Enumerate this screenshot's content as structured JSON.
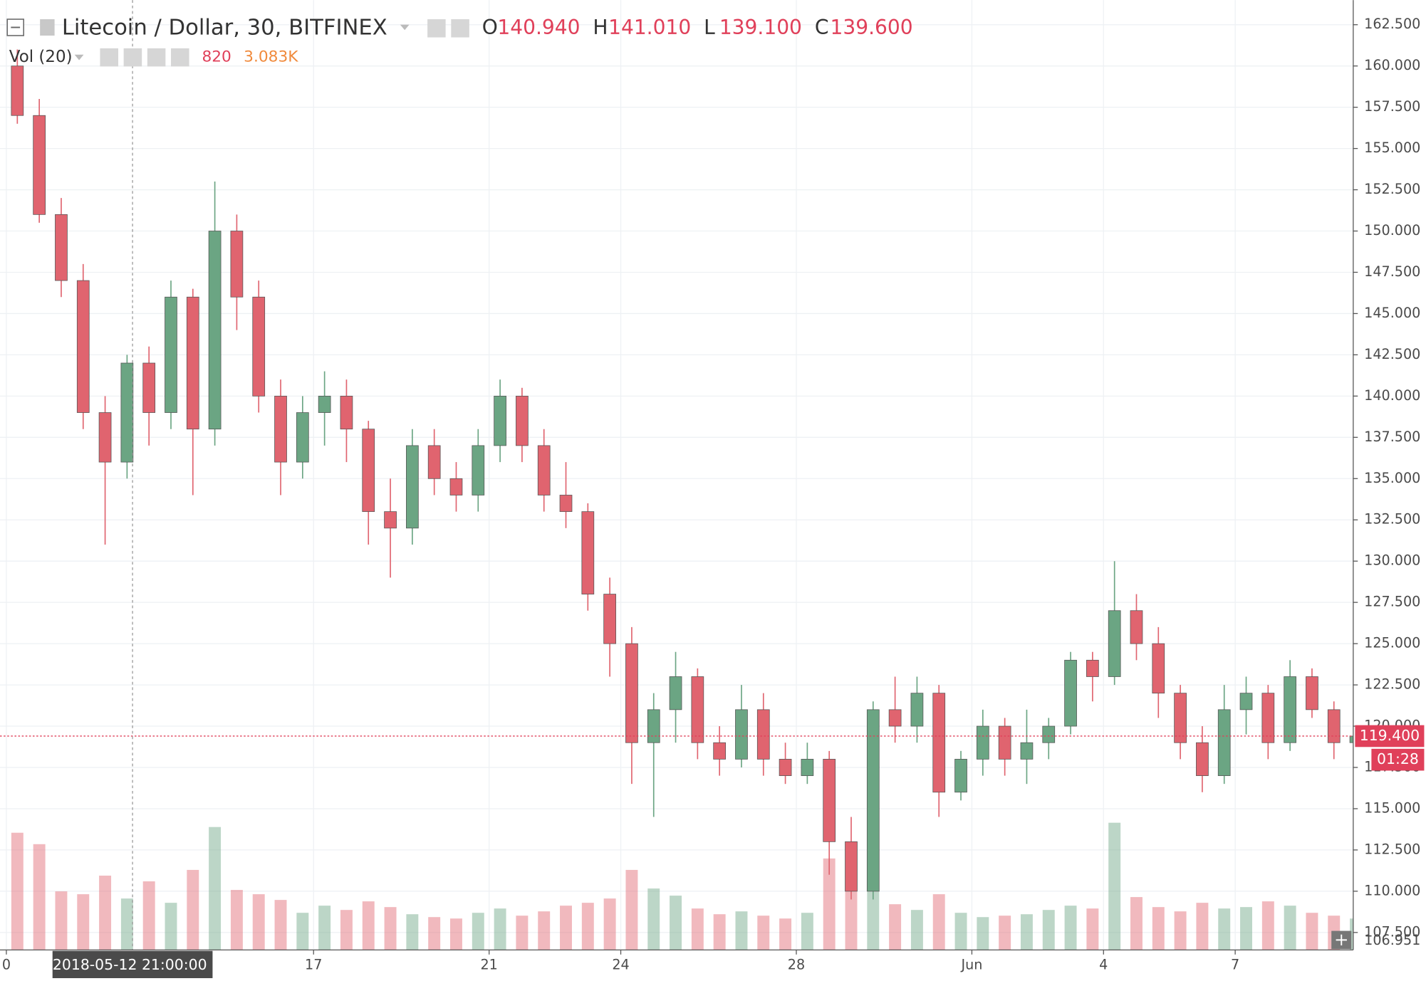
{
  "chart_data": {
    "type": "candlestick",
    "title": "Litecoin / Dollar, 30, BITFINEX",
    "ohlc_legend": [
      {
        "label": "O",
        "value": "140.940"
      },
      {
        "label": "H",
        "value": "141.010"
      },
      {
        "label": "L",
        "value": "139.100"
      },
      {
        "label": "C",
        "value": "139.600"
      }
    ],
    "volume_legend": {
      "label": "Vol (20)",
      "values": [
        "820",
        "3.083K"
      ]
    },
    "up_color": "#6ba583",
    "down_color": "#e0646f",
    "x": [
      10,
      10.5,
      11,
      11.5,
      12,
      12.5,
      13,
      13.5,
      14,
      14.5,
      15,
      15.5,
      16,
      16.5,
      17,
      17.5,
      18,
      18.5,
      19,
      19.5,
      20,
      20.5,
      21,
      21.5,
      22,
      22.5,
      23,
      23.5,
      24,
      24.5,
      25,
      25.5,
      26,
      26.5,
      27,
      27.5,
      28,
      28.5,
      29,
      29.5,
      30,
      30.5,
      31,
      31.5,
      32,
      32.5,
      33,
      33.5,
      34,
      34.5,
      35,
      35.5,
      36,
      36.5,
      37,
      37.5,
      38,
      38.5,
      39,
      39.5,
      40,
      40.5
    ],
    "open": [
      160,
      157,
      151,
      147,
      139,
      136,
      142,
      139,
      146,
      138,
      150,
      146,
      140,
      136,
      139,
      140,
      138,
      133,
      132,
      137,
      135,
      134,
      137,
      140,
      137,
      134,
      133,
      128,
      125,
      119,
      121,
      123,
      119,
      118,
      121,
      118,
      117,
      118,
      113,
      110,
      121,
      120,
      122,
      116,
      118,
      120,
      118,
      119,
      120,
      124,
      123,
      127,
      125,
      122,
      119,
      117,
      121,
      122,
      119,
      123,
      121,
      119
    ],
    "high": [
      161,
      158,
      152,
      148,
      140,
      142.5,
      143,
      147,
      146.5,
      153,
      151,
      147,
      141,
      140,
      141.5,
      141,
      138.5,
      135,
      138,
      138,
      136,
      138,
      141,
      140.5,
      138,
      136,
      133.5,
      129,
      126,
      122,
      124.5,
      123.5,
      120,
      122.5,
      122,
      119,
      119,
      118.5,
      114.5,
      121.5,
      123,
      123,
      122.5,
      118.5,
      121,
      120.5,
      121,
      120.5,
      124.5,
      124.5,
      130,
      128,
      126,
      122.5,
      120,
      122.5,
      123,
      122.5,
      124,
      123.5,
      121.5,
      121
    ],
    "low": [
      156.5,
      150.5,
      146,
      138,
      131,
      135,
      137,
      138,
      134,
      137,
      144,
      139,
      134,
      135,
      137,
      136,
      131,
      129,
      131,
      134,
      133,
      133,
      136,
      136,
      133,
      132,
      127,
      123,
      116.5,
      114.5,
      119,
      118,
      117,
      117.5,
      117,
      116.5,
      116.5,
      111,
      109.5,
      109.5,
      119,
      119,
      114.5,
      115.5,
      117,
      117,
      116.5,
      118,
      119.5,
      121.5,
      122.5,
      124,
      120.5,
      118,
      116,
      116.5,
      119.5,
      118,
      118.5,
      120.5,
      118,
      118.5
    ],
    "close": [
      157,
      151,
      147,
      139,
      136,
      142,
      139,
      146,
      138,
      150,
      146,
      140,
      136,
      139,
      140,
      138,
      133,
      132,
      137,
      135,
      134,
      137,
      140,
      137,
      134,
      133,
      128,
      125,
      119,
      121,
      123,
      119,
      118,
      121,
      118,
      117,
      118,
      113,
      110,
      121,
      120,
      122,
      116,
      118,
      120,
      118,
      119,
      120,
      124,
      123,
      127,
      125,
      122,
      119,
      117,
      121,
      122,
      119,
      123,
      121,
      119,
      119.4
    ],
    "volume": [
      8200,
      7400,
      4100,
      3900,
      5200,
      3600,
      4800,
      3300,
      5600,
      8600,
      4200,
      3900,
      3500,
      2600,
      3100,
      2800,
      3400,
      3000,
      2500,
      2300,
      2200,
      2600,
      2900,
      2400,
      2700,
      3100,
      3300,
      3600,
      5600,
      4300,
      3800,
      2900,
      2500,
      2700,
      2400,
      2200,
      2600,
      6400,
      5200,
      4700,
      3200,
      2800,
      3900,
      2600,
      2300,
      2400,
      2500,
      2800,
      3100,
      2900,
      8900,
      3700,
      3000,
      2700,
      3300,
      2900,
      3000,
      3400,
      3100,
      2600,
      2400,
      2200
    ],
    "xlim": [
      9.855,
      40.69
    ],
    "xticks": [
      {
        "value": 10,
        "label": "0"
      },
      17,
      21,
      24,
      28,
      {
        "value": 32,
        "label": "Jun"
      },
      {
        "value": 35,
        "label": "4"
      },
      {
        "value": 38,
        "label": "7"
      }
    ],
    "ylim": [
      106.44,
      163.99
    ],
    "yticks": [
      {
        "value": 107.5,
        "label": "107.500"
      },
      {
        "value": 110,
        "label": "110.000"
      },
      {
        "value": 112.5,
        "label": "112.500"
      },
      {
        "value": 115,
        "label": "115.000"
      },
      {
        "value": 117.5,
        "label": "117.500"
      },
      {
        "value": 120,
        "label": "120.000"
      },
      {
        "value": 122.5,
        "label": "122.500"
      },
      {
        "value": 125,
        "label": "125.000"
      },
      {
        "value": 127.5,
        "label": "127.500"
      },
      {
        "value": 130,
        "label": "130.000"
      },
      {
        "value": 132.5,
        "label": "132.500"
      },
      {
        "value": 135,
        "label": "135.000"
      },
      {
        "value": 137.5,
        "label": "137.500"
      },
      {
        "value": 140,
        "label": "140.000"
      },
      {
        "value": 142.5,
        "label": "142.500"
      },
      {
        "value": 145,
        "label": "145.000"
      },
      {
        "value": 147.5,
        "label": "147.500"
      },
      {
        "value": 150,
        "label": "150.000"
      },
      {
        "value": 152.5,
        "label": "152.500"
      },
      {
        "value": 155,
        "label": "155.000"
      },
      {
        "value": 157.5,
        "label": "157.500"
      },
      {
        "value": 160,
        "label": "160.000"
      },
      {
        "value": 162.5,
        "label": "162.500"
      }
    ],
    "grid": true,
    "last_price": {
      "value": 119.4,
      "label": "119.400",
      "countdown": "01:28"
    },
    "crosshair": {
      "x": 12.875,
      "label": "2018-05-12 21:00:00"
    },
    "volume_axis_label": "106.951"
  }
}
